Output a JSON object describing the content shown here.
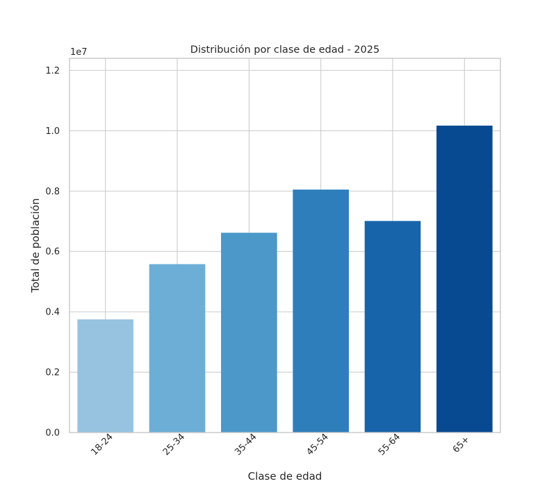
{
  "chart_data": {
    "type": "bar",
    "title": "Distribución por clase de edad - 2025",
    "xlabel": "Clase de edad",
    "ylabel": "Total de población",
    "offset_label": "1e7",
    "categories": [
      "18-24",
      "25-34",
      "35-44",
      "45-54",
      "55-64",
      "65+"
    ],
    "values": [
      3750000,
      5580000,
      6620000,
      8050000,
      7010000,
      10170000
    ],
    "colors": [
      "#97c3e0",
      "#6caed6",
      "#4b98c9",
      "#2e7ebc",
      "#1864aa",
      "#084a91"
    ],
    "ylim": [
      0,
      12400000
    ],
    "yticks": [
      0,
      2000000,
      4000000,
      6000000,
      8000000,
      10000000,
      12000000
    ],
    "ytick_labels": [
      "0.0",
      "0.2",
      "0.4",
      "0.6",
      "0.8",
      "1.0",
      "1.2"
    ],
    "grid": true,
    "legend": "none"
  }
}
